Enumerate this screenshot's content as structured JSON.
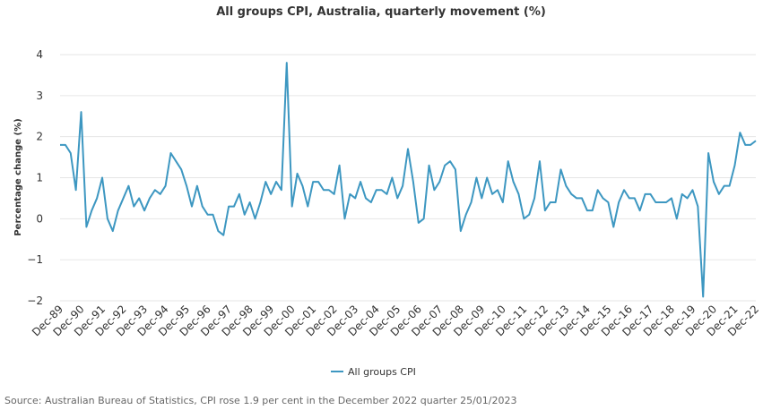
{
  "chart_data": {
    "type": "line",
    "title": "All groups CPI, Australia, quarterly movement (%)",
    "xlabel": "",
    "ylabel": "Percentage change (%)",
    "ylim": [
      -2,
      4
    ],
    "yticks": [
      {
        "value": 4,
        "label": "4"
      },
      {
        "value": 3,
        "label": "3"
      },
      {
        "value": 2,
        "label": "2"
      },
      {
        "value": 1,
        "label": "1"
      },
      {
        "value": 0,
        "label": "0"
      },
      {
        "value": -1,
        "label": "−1"
      },
      {
        "value": -2,
        "label": "−2"
      }
    ],
    "grid": true,
    "legend_position": "bottom-center",
    "colors": {
      "series": "#3d97c1",
      "grid": "#e6e6e6",
      "text": "#333333",
      "source": "#666666"
    },
    "x_tick_labels": [
      "Dec-89",
      "Dec-90",
      "Dec-91",
      "Dec-92",
      "Dec-93",
      "Dec-94",
      "Dec-95",
      "Dec-96",
      "Dec-97",
      "Dec-98",
      "Dec-99",
      "Dec-00",
      "Dec-01",
      "Dec-02",
      "Dec-03",
      "Dec-04",
      "Dec-05",
      "Dec-06",
      "Dec-07",
      "Dec-08",
      "Dec-09",
      "Dec-10",
      "Dec-11",
      "Dec-12",
      "Dec-13",
      "Dec-14",
      "Dec-15",
      "Dec-16",
      "Dec-17",
      "Dec-18",
      "Dec-19",
      "Dec-20",
      "Dec-21",
      "Dec-22"
    ],
    "series": [
      {
        "name": "All groups CPI",
        "values": [
          1.8,
          1.8,
          1.6,
          0.7,
          2.6,
          -0.2,
          0.2,
          0.5,
          1.0,
          0.0,
          -0.3,
          0.2,
          0.5,
          0.8,
          0.3,
          0.5,
          0.2,
          0.5,
          0.7,
          0.6,
          0.8,
          1.6,
          1.4,
          1.2,
          0.8,
          0.3,
          0.8,
          0.3,
          0.1,
          0.1,
          -0.3,
          -0.4,
          0.3,
          0.3,
          0.6,
          0.1,
          0.4,
          0.0,
          0.4,
          0.9,
          0.6,
          0.9,
          0.7,
          3.8,
          0.3,
          1.1,
          0.8,
          0.3,
          0.9,
          0.9,
          0.7,
          0.7,
          0.6,
          1.3,
          0.0,
          0.6,
          0.5,
          0.9,
          0.5,
          0.4,
          0.7,
          0.7,
          0.6,
          1.0,
          0.5,
          0.8,
          1.7,
          0.9,
          -0.1,
          0.0,
          1.3,
          0.7,
          0.9,
          1.3,
          1.4,
          1.2,
          -0.3,
          0.1,
          0.4,
          1.0,
          0.5,
          1.0,
          0.6,
          0.7,
          0.4,
          1.4,
          0.9,
          0.6,
          0.0,
          0.1,
          0.5,
          1.4,
          0.2,
          0.4,
          0.4,
          1.2,
          0.8,
          0.6,
          0.5,
          0.5,
          0.2,
          0.2,
          0.7,
          0.5,
          0.4,
          -0.2,
          0.4,
          0.7,
          0.5,
          0.5,
          0.2,
          0.6,
          0.6,
          0.4,
          0.4,
          0.4,
          0.5,
          0.0,
          0.6,
          0.5,
          0.7,
          0.3,
          -1.9,
          1.6,
          0.9,
          0.6,
          0.8,
          0.8,
          1.3,
          2.1,
          1.8,
          1.8,
          1.9
        ]
      }
    ]
  },
  "source_text": "Source: Australian Bureau of Statistics, CPI rose 1.9 per cent in the December 2022 quarter 25/01/2023"
}
